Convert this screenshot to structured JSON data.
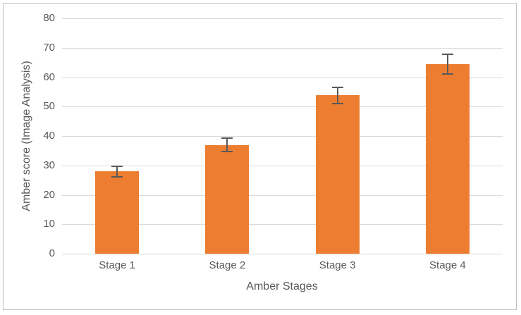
{
  "chart_data": {
    "type": "bar",
    "title": "",
    "categories": [
      "Stage 1",
      "Stage 2",
      "Stage 3",
      "Stage 4"
    ],
    "series": [
      {
        "name": "Amber score",
        "values": [
          28,
          37,
          53.8,
          64.5
        ],
        "error_bars": [
          1.8,
          2.2,
          2.8,
          3.3
        ]
      }
    ],
    "xlabel": "Amber Stages",
    "ylabel": "Amber score (Image Analysis)",
    "ylim": [
      0,
      80
    ],
    "yticks": [
      0,
      10,
      20,
      30,
      40,
      50,
      60,
      70,
      80
    ],
    "grid": "horizontal",
    "legend": "none",
    "colors": {
      "bar": "#ED7D31",
      "gridline": "#D9D9D9",
      "axis_line": "#D9D9D9",
      "text": "#595959",
      "error_bar": "#595959",
      "frame_border": "#BFBFBF",
      "background": "#FFFFFF"
    }
  }
}
